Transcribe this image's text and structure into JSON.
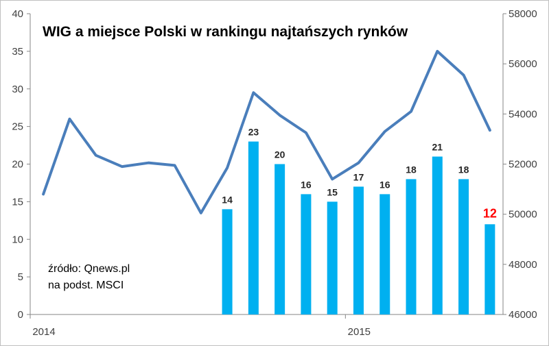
{
  "chart_data": {
    "type": "bar+line",
    "title": "WIG a miejsce Polski w rankingu najtańszych rynków",
    "source_line1": "źródło: Qnews.pl",
    "source_line2": "na podst. MSCI",
    "x_labels": [
      "2014",
      "2015"
    ],
    "left_axis": {
      "min": 0,
      "max": 40,
      "step": 5,
      "ticks": [
        "0",
        "5",
        "10",
        "15",
        "20",
        "25",
        "30",
        "35",
        "40"
      ]
    },
    "right_axis": {
      "min": 46000,
      "max": 58000,
      "step": 2000,
      "ticks": [
        "46000",
        "48000",
        "50000",
        "52000",
        "54000",
        "56000",
        "58000"
      ]
    },
    "bars": {
      "name": "miejsce Polski w rankingu",
      "color": "#00b0f0",
      "start_index": 7,
      "values": [
        14,
        23,
        20,
        16,
        15,
        17,
        16,
        18,
        21,
        18,
        12
      ],
      "labels": [
        "14",
        "23",
        "20",
        "16",
        "15",
        "17",
        "16",
        "18",
        "21",
        "18",
        "12"
      ],
      "highlight_color": "#ff0000"
    },
    "line": {
      "name": "WIG",
      "color": "#4a7ebb",
      "values": [
        50800,
        53800,
        52350,
        51900,
        52050,
        51950,
        50050,
        51850,
        54850,
        53950,
        53250,
        51400,
        52050,
        53300,
        54100,
        56500,
        55550,
        53350
      ]
    }
  }
}
